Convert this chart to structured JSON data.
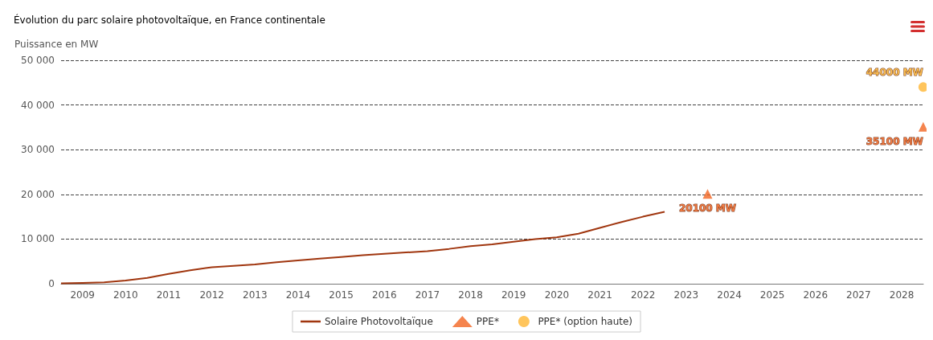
{
  "chart_data": {
    "type": "line",
    "title": "Évolution du parc solaire photovoltaïque, en France continentale",
    "ylabel": "Puissance en MW",
    "xlim": [
      "2009-01-01",
      "2029-01-01"
    ],
    "xticks": [
      {
        "value": "2009-07-02",
        "label": "2009"
      },
      {
        "value": "2010-07-02",
        "label": "2010"
      },
      {
        "value": "2011-07-02",
        "label": "2011"
      },
      {
        "value": "2012-07-02",
        "label": "2012"
      },
      {
        "value": "2013-07-02",
        "label": "2013"
      },
      {
        "value": "2014-07-02",
        "label": "2014"
      },
      {
        "value": "2015-07-02",
        "label": "2015"
      },
      {
        "value": "2016-07-02",
        "label": "2016"
      },
      {
        "value": "2017-07-02",
        "label": "2017"
      },
      {
        "value": "2018-07-02",
        "label": "2018"
      },
      {
        "value": "2019-07-02",
        "label": "2019"
      },
      {
        "value": "2020-07-02",
        "label": "2020"
      },
      {
        "value": "2021-07-02",
        "label": "2021"
      },
      {
        "value": "2022-07-02",
        "label": "2022"
      },
      {
        "value": "2023-07-02",
        "label": "2023"
      },
      {
        "value": "2024-07-02",
        "label": "2024"
      },
      {
        "value": "2025-07-02",
        "label": "2025"
      },
      {
        "value": "2026-07-02",
        "label": "2026"
      },
      {
        "value": "2027-07-02",
        "label": "2027"
      },
      {
        "value": "2028-07-02",
        "label": "2028"
      }
    ],
    "ylim": [
      0,
      50000
    ],
    "yticks": [
      {
        "value": 0,
        "label": "0"
      },
      {
        "value": 10000,
        "label": "10 000"
      },
      {
        "value": 20000,
        "label": "20 000"
      },
      {
        "value": 30000,
        "label": "30 000"
      },
      {
        "value": 40000,
        "label": "40 000"
      },
      {
        "value": 50000,
        "label": "50 000"
      }
    ],
    "grid": "y",
    "legend": "bottom",
    "series": [
      {
        "name": "Solaire Photovoltaïque",
        "color": "#a0360f",
        "marker": "none",
        "x": [
          "2009-01",
          "2009-07",
          "2010-01",
          "2010-07",
          "2011-01",
          "2011-07",
          "2012-01",
          "2012-07",
          "2013-01",
          "2013-07",
          "2014-01",
          "2014-07",
          "2015-01",
          "2015-07",
          "2016-01",
          "2016-07",
          "2017-01",
          "2017-07",
          "2018-01",
          "2018-07",
          "2019-01",
          "2019-07",
          "2020-01",
          "2020-07",
          "2021-01",
          "2021-07",
          "2022-01",
          "2022-07",
          "2023-01"
        ],
        "values": [
          100,
          200,
          300,
          700,
          1300,
          2200,
          3000,
          3700,
          4000,
          4300,
          4800,
          5200,
          5600,
          6000,
          6400,
          6700,
          7000,
          7300,
          7800,
          8400,
          8800,
          9400,
          10000,
          10400,
          11200,
          12500,
          13800,
          15000,
          16100
        ]
      },
      {
        "name": "PPE*",
        "type": "scatter",
        "color": "#f26522",
        "marker": "triangle",
        "x": [
          "2023-12-31",
          "2028-12-31"
        ],
        "values": [
          20100,
          35100
        ],
        "value_labels": [
          "20100 MW",
          "35100 MW"
        ]
      },
      {
        "name": "PPE* (option haute)",
        "type": "scatter",
        "color": "#ffb733",
        "marker": "circle",
        "x": [
          "2028-12-31"
        ],
        "values": [
          44000
        ],
        "value_labels": [
          "44000 MW"
        ]
      }
    ]
  }
}
